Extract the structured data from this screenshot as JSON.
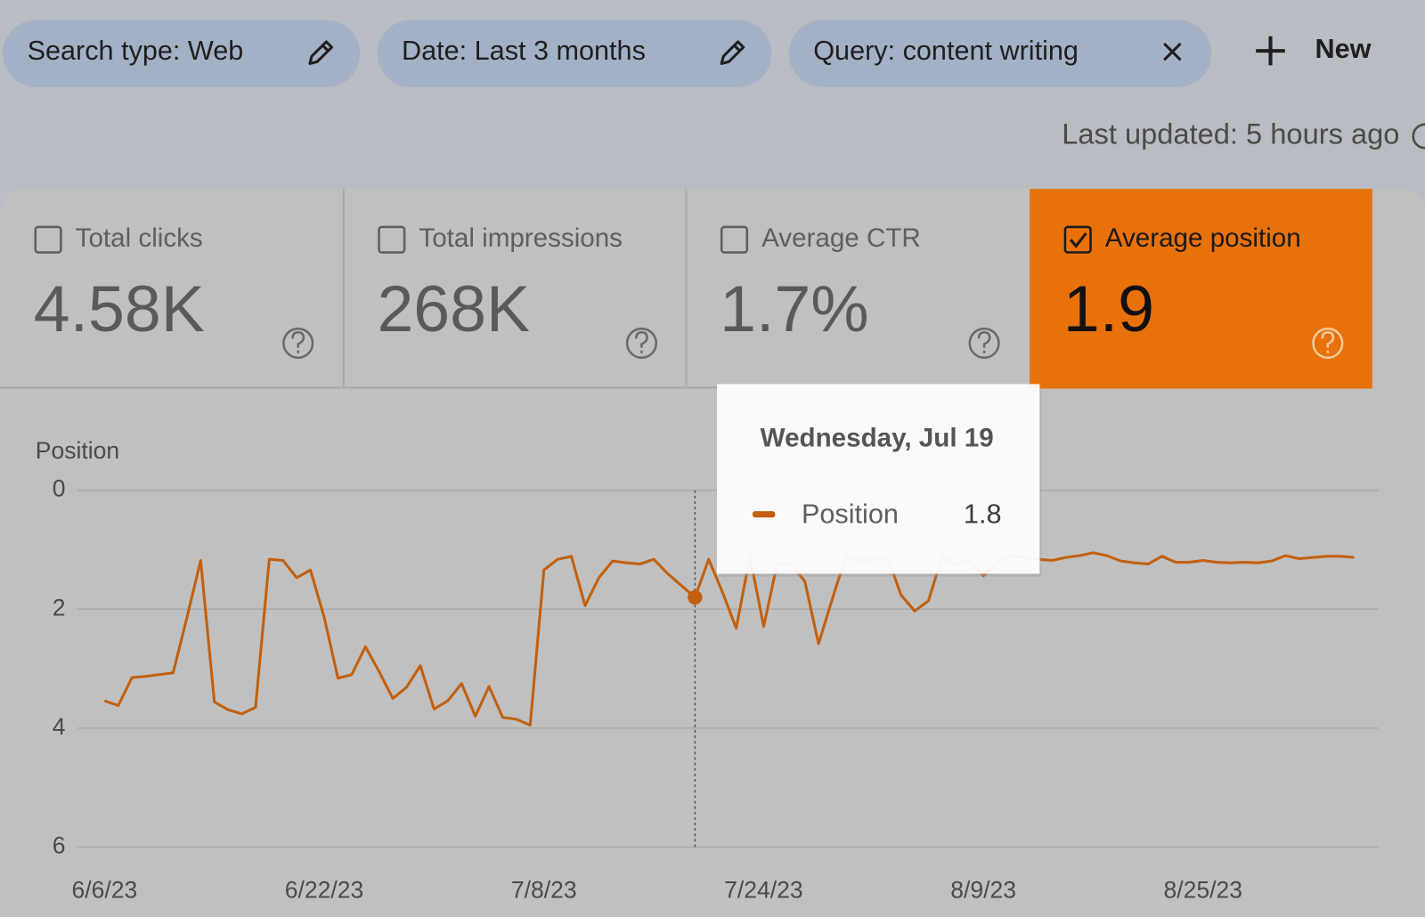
{
  "filters": [
    {
      "label": "Search type: Web"
    },
    {
      "label": "Date: Last 3 months"
    },
    {
      "label": "Query: content writing"
    }
  ],
  "new_button": "New",
  "last_updated": "Last updated: 5 hours ago",
  "metrics": [
    {
      "label": "Total clicks",
      "value": "4.58K",
      "checked": false
    },
    {
      "label": "Total impressions",
      "value": "268K",
      "checked": false
    },
    {
      "label": "Average CTR",
      "value": "1.7%",
      "checked": false
    },
    {
      "label": "Average position",
      "value": "1.9",
      "checked": true
    }
  ],
  "tooltip": {
    "title": "Wednesday, Jul 19"
  },
  "chart_data": {
    "type": "line",
    "ylabel": "Position",
    "categories": [
      "6/6/23",
      null,
      null,
      null,
      null,
      null,
      null,
      null,
      null,
      null,
      null,
      null,
      null,
      null,
      null,
      null,
      "6/22/23",
      null,
      null,
      null,
      null,
      null,
      null,
      null,
      null,
      null,
      null,
      null,
      null,
      null,
      null,
      null,
      "7/8/23",
      null,
      null,
      null,
      null,
      null,
      null,
      null,
      null,
      null,
      null,
      null,
      null,
      null,
      null,
      null,
      "7/24/23",
      null,
      null,
      null,
      null,
      null,
      null,
      null,
      null,
      null,
      null,
      null,
      null,
      null,
      null,
      null,
      "8/9/23",
      null,
      null,
      null,
      null,
      null,
      null,
      null,
      null,
      null,
      null,
      null,
      null,
      null,
      null,
      null,
      "8/25/23",
      null,
      null,
      null,
      null,
      null,
      null,
      null,
      null,
      null,
      null,
      null
    ],
    "series": [
      {
        "name": "Position",
        "color": "#c2600f",
        "values": [
          3.54,
          3.62,
          3.15,
          3.13,
          3.1,
          3.07,
          2.14,
          1.18,
          3.56,
          3.69,
          3.76,
          3.65,
          1.16,
          1.18,
          1.47,
          1.34,
          2.14,
          3.16,
          3.1,
          2.63,
          3.05,
          3.5,
          3.31,
          2.95,
          3.68,
          3.54,
          3.25,
          3.8,
          3.3,
          3.82,
          3.85,
          3.95,
          1.34,
          1.16,
          1.11,
          1.94,
          1.47,
          1.19,
          1.22,
          1.24,
          1.16,
          1.4,
          1.6,
          1.8,
          1.16,
          1.71,
          2.32,
          1.11,
          2.29,
          1.22,
          1.25,
          1.53,
          2.58,
          1.83,
          1.1,
          1.18,
          1.16,
          1.11,
          1.76,
          2.03,
          1.86,
          1.11,
          1.27,
          1.18,
          1.44,
          1.21,
          1.11,
          1.13,
          1.16,
          1.18,
          1.13,
          1.1,
          1.05,
          1.1,
          1.19,
          1.22,
          1.24,
          1.11,
          1.21,
          1.21,
          1.18,
          1.21,
          1.22,
          1.21,
          1.22,
          1.19,
          1.1,
          1.15,
          1.13,
          1.11,
          1.11,
          1.13
        ]
      }
    ],
    "ylim": [
      0,
      6
    ],
    "yticks": [
      0,
      2,
      4,
      6
    ],
    "y_inverted": true,
    "grid": true
  }
}
